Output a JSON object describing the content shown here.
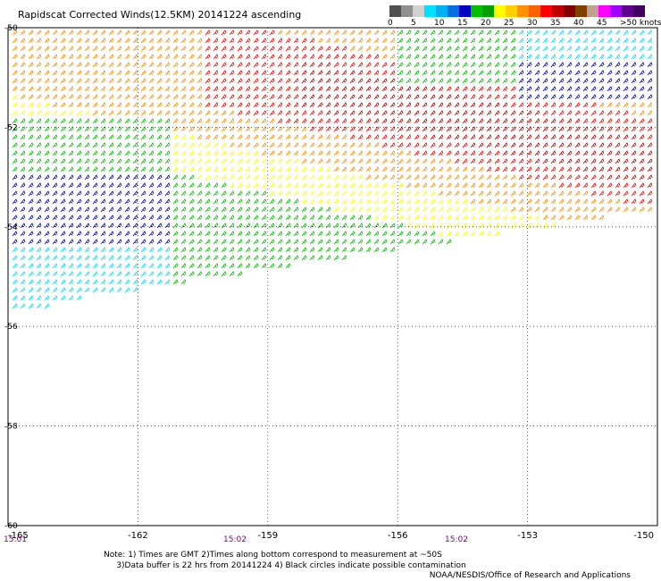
{
  "title": "Rapidscat Corrected Winds(12.5KM) 20141224 ascending",
  "colorbar": {
    "colors": [
      "#505050",
      "#909090",
      "#d0d0d0",
      "#00e0ff",
      "#00b0f0",
      "#0070e0",
      "#0000c0",
      "#00c000",
      "#00a000",
      "#ffff00",
      "#ffd000",
      "#ff9000",
      "#ff6000",
      "#ff0000",
      "#c00000",
      "#800000",
      "#804000",
      "#c0a090",
      "#ff00ff",
      "#a000ff",
      "#600090",
      "#400060"
    ],
    "labels": [
      "0",
      "5",
      "10",
      "15",
      "20",
      "25",
      "30",
      "35",
      "40",
      "45",
      ">50 knots"
    ]
  },
  "map": {
    "lon_range": [
      -165,
      -150
    ],
    "lat_range": [
      -60,
      -50
    ],
    "lon_ticks": [
      "-165",
      "-162",
      "-159",
      "-156",
      "-153",
      "-150"
    ],
    "lat_ticks": [
      "-50",
      "-52",
      "-54",
      "-56",
      "-58",
      "-60"
    ],
    "wind_barb_colors": {
      "calm": "#000000",
      "light": "#00e0ff",
      "moderate": "#0000c0",
      "fresh": "#00c000",
      "strong": "#ffff00",
      "gale": "#ff9000",
      "storm": "#ff0000",
      "severe": "#c00000"
    }
  },
  "time_labels": [
    {
      "text": "15:01"
    },
    {
      "text": "15:02"
    },
    {
      "text": "15:02"
    }
  ],
  "note_line1": "Note: 1) Times are GMT 2)Times along bottom correspond to measurement at ~50S",
  "note_line2": "3)Data buffer is 22 hrs from 20141224 4) Black circles indicate possible contamination",
  "credit": "NOAA/NESDIS/Office of Research and Applications"
}
